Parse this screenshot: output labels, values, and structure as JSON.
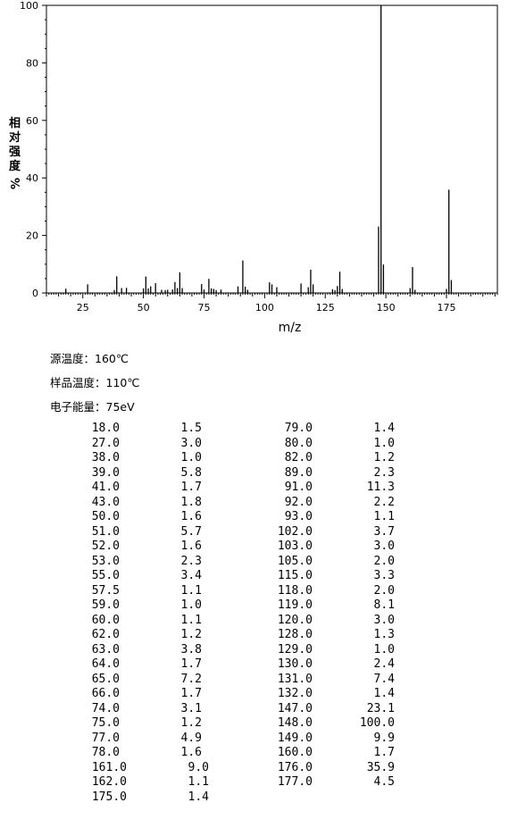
{
  "chart_data": {
    "type": "bar",
    "title": "",
    "xlabel": "m/z",
    "ylabel": "相对强度 %",
    "xlim": [
      10,
      196
    ],
    "ylim": [
      0,
      100
    ],
    "xticks": [
      25,
      50,
      75,
      100,
      125,
      150,
      175
    ],
    "yticks": [
      0,
      20,
      40,
      60,
      80,
      100
    ],
    "grid": false,
    "peaks": [
      {
        "mz": 18.0,
        "intensity": 1.5
      },
      {
        "mz": 27.0,
        "intensity": 3.0
      },
      {
        "mz": 38.0,
        "intensity": 1.0
      },
      {
        "mz": 39.0,
        "intensity": 5.8
      },
      {
        "mz": 41.0,
        "intensity": 1.7
      },
      {
        "mz": 43.0,
        "intensity": 1.8
      },
      {
        "mz": 50.0,
        "intensity": 1.6
      },
      {
        "mz": 51.0,
        "intensity": 5.7
      },
      {
        "mz": 52.0,
        "intensity": 1.6
      },
      {
        "mz": 53.0,
        "intensity": 2.3
      },
      {
        "mz": 55.0,
        "intensity": 3.4
      },
      {
        "mz": 57.5,
        "intensity": 1.1
      },
      {
        "mz": 59.0,
        "intensity": 1.0
      },
      {
        "mz": 60.0,
        "intensity": 1.1
      },
      {
        "mz": 62.0,
        "intensity": 1.2
      },
      {
        "mz": 63.0,
        "intensity": 3.8
      },
      {
        "mz": 64.0,
        "intensity": 1.7
      },
      {
        "mz": 65.0,
        "intensity": 7.2
      },
      {
        "mz": 66.0,
        "intensity": 1.7
      },
      {
        "mz": 74.0,
        "intensity": 3.1
      },
      {
        "mz": 75.0,
        "intensity": 1.2
      },
      {
        "mz": 77.0,
        "intensity": 4.9
      },
      {
        "mz": 78.0,
        "intensity": 1.6
      },
      {
        "mz": 79.0,
        "intensity": 1.4
      },
      {
        "mz": 80.0,
        "intensity": 1.0
      },
      {
        "mz": 82.0,
        "intensity": 1.2
      },
      {
        "mz": 89.0,
        "intensity": 2.3
      },
      {
        "mz": 91.0,
        "intensity": 11.3
      },
      {
        "mz": 92.0,
        "intensity": 2.2
      },
      {
        "mz": 93.0,
        "intensity": 1.1
      },
      {
        "mz": 102.0,
        "intensity": 3.7
      },
      {
        "mz": 103.0,
        "intensity": 3.0
      },
      {
        "mz": 105.0,
        "intensity": 2.0
      },
      {
        "mz": 115.0,
        "intensity": 3.3
      },
      {
        "mz": 118.0,
        "intensity": 2.0
      },
      {
        "mz": 119.0,
        "intensity": 8.1
      },
      {
        "mz": 120.0,
        "intensity": 3.0
      },
      {
        "mz": 128.0,
        "intensity": 1.3
      },
      {
        "mz": 129.0,
        "intensity": 1.0
      },
      {
        "mz": 130.0,
        "intensity": 2.4
      },
      {
        "mz": 131.0,
        "intensity": 7.4
      },
      {
        "mz": 132.0,
        "intensity": 1.4
      },
      {
        "mz": 147.0,
        "intensity": 23.1
      },
      {
        "mz": 148.0,
        "intensity": 100.0
      },
      {
        "mz": 149.0,
        "intensity": 9.9
      },
      {
        "mz": 160.0,
        "intensity": 1.7
      },
      {
        "mz": 161.0,
        "intensity": 9.0
      },
      {
        "mz": 162.0,
        "intensity": 1.1
      },
      {
        "mz": 175.0,
        "intensity": 1.4
      },
      {
        "mz": 176.0,
        "intensity": 35.9
      },
      {
        "mz": 177.0,
        "intensity": 4.5
      }
    ]
  },
  "conditions": {
    "source_temp": "源温度：160℃",
    "sample_temp": "样品温度：110℃",
    "electron_energy": "电子能量：75eV"
  },
  "table": {
    "left_col1_mz": [
      "18.0",
      "27.0",
      "38.0",
      "39.0",
      "41.0",
      "43.0",
      "50.0",
      "51.0",
      "52.0",
      "53.0",
      "55.0",
      "57.5",
      "59.0",
      "60.0",
      "62.0",
      "63.0",
      "64.0",
      "65.0",
      "66.0",
      "74.0",
      "75.0",
      "77.0",
      "78.0"
    ],
    "left_col1_int": [
      "1.5",
      "3.0",
      "1.0",
      "5.8",
      "1.7",
      "1.8",
      "1.6",
      "5.7",
      "1.6",
      "2.3",
      "3.4",
      "1.1",
      "1.0",
      "1.1",
      "1.2",
      "3.8",
      "1.7",
      "7.2",
      "1.7",
      "3.1",
      "1.2",
      "4.9",
      "1.6"
    ],
    "right_col_mz": [
      "79.0",
      "80.0",
      "82.0",
      "89.0",
      "91.0",
      "92.0",
      "93.0",
      "102.0",
      "103.0",
      "105.0",
      "115.0",
      "118.0",
      "119.0",
      "120.0",
      "128.0",
      "129.0",
      "130.0",
      "131.0",
      "132.0",
      "147.0",
      "148.0",
      "149.0",
      "160.0"
    ],
    "right_col_int": [
      "1.4",
      "1.0",
      "1.2",
      "2.3",
      "11.3",
      "2.2",
      "1.1",
      "3.7",
      "3.0",
      "2.0",
      "3.3",
      "2.0",
      "8.1",
      "3.0",
      "1.3",
      "1.0",
      "2.4",
      "7.4",
      "1.4",
      "23.1",
      "100.0",
      "9.9",
      "1.7"
    ],
    "tail_left_mz": [
      "161.0",
      "162.0",
      "175.0"
    ],
    "tail_left_int": [
      "9.0",
      "1.1",
      "1.4"
    ],
    "tail_right_mz": [
      "176.0",
      "177.0"
    ],
    "tail_right_int": [
      "35.9",
      "4.5"
    ]
  }
}
